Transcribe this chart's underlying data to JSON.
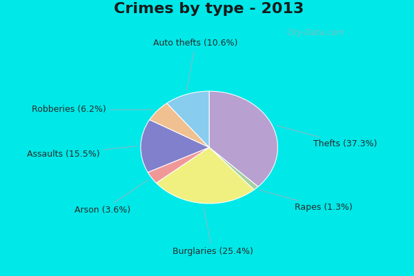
{
  "title": "Crimes by type - 2013",
  "plot_values": [
    37.3,
    1.3,
    25.4,
    3.6,
    15.5,
    6.2,
    10.6
  ],
  "plot_colors": [
    "#b8a0d0",
    "#a8d0a0",
    "#f0f080",
    "#f09898",
    "#8080cc",
    "#f0c090",
    "#88ccee"
  ],
  "plot_labels": [
    "Thefts (37.3%)",
    "Rapes (1.3%)",
    "Burglaries (25.4%)",
    "Arson (3.6%)",
    "Assaults (15.5%)",
    "Robberies (6.2%)",
    "Auto thefts (10.6%)"
  ],
  "bg_outer": "#00e8e8",
  "bg_inner_color": "#c8e8d8",
  "title_fontsize": 16,
  "label_fontsize": 9,
  "watermark": "City-Data.com",
  "startangle": 90,
  "counterclock": false
}
